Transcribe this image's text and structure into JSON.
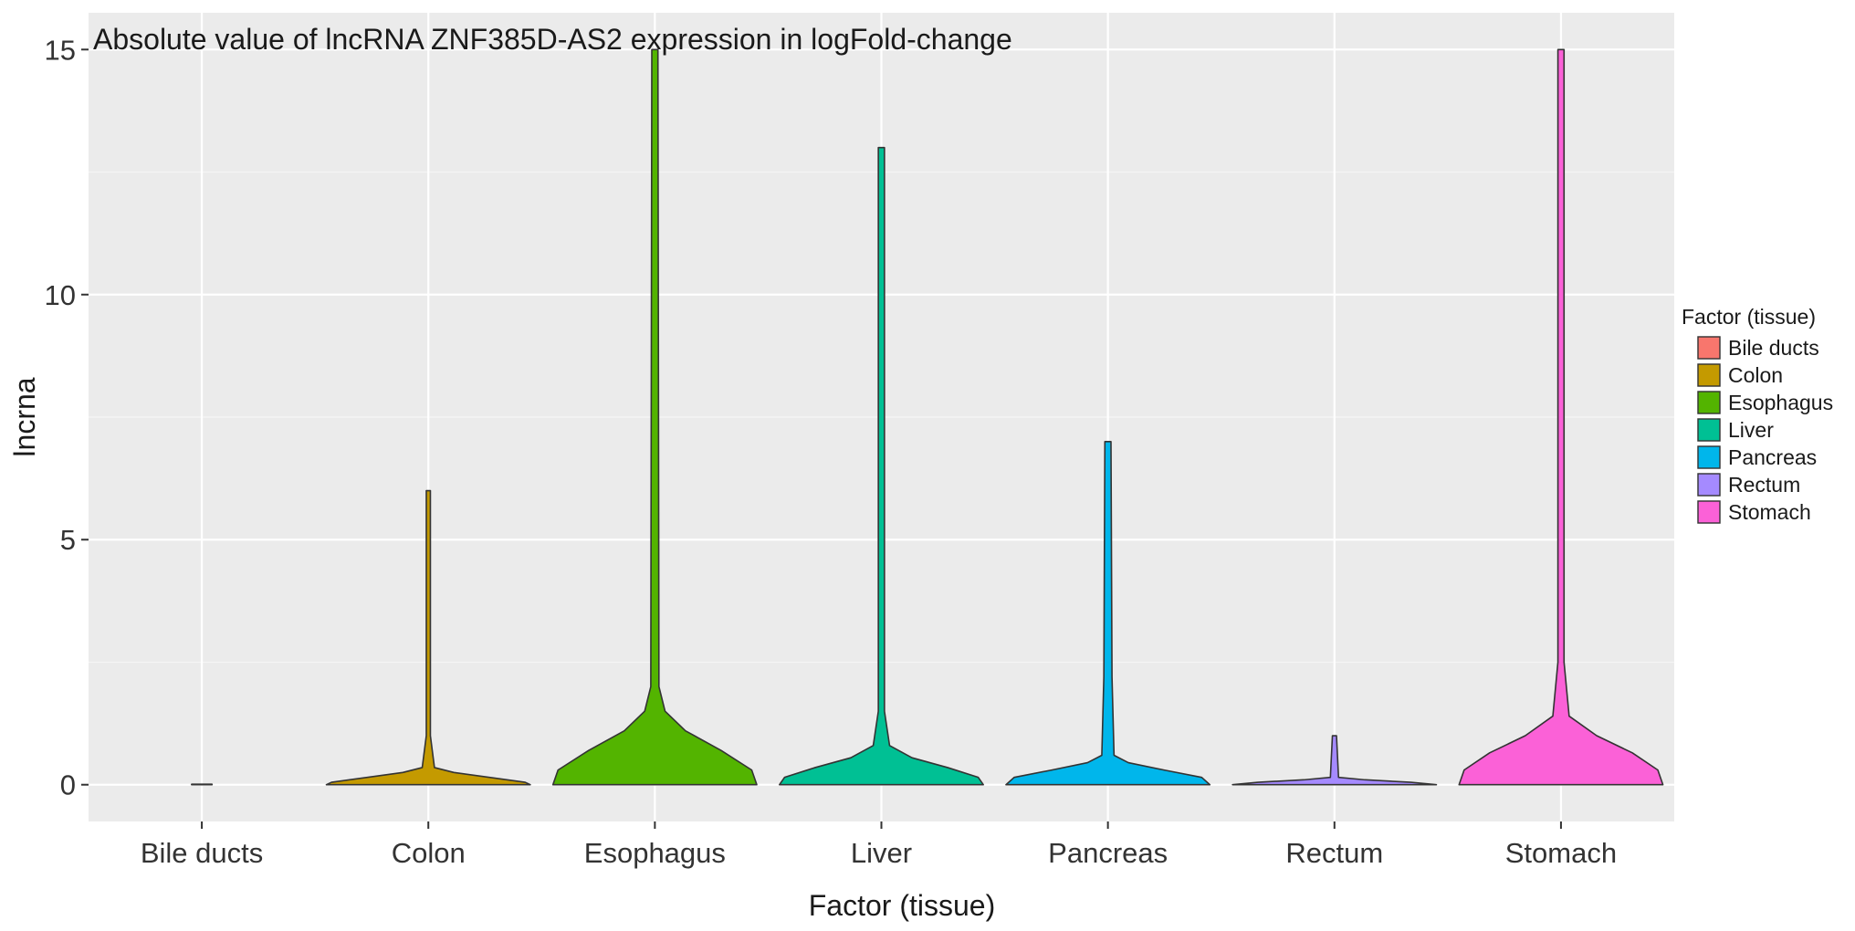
{
  "chart_data": {
    "type": "violin",
    "title": "Absolute value of lncRNA ZNF385D-AS2 expression in logFold-change",
    "xlabel": "Factor (tissue)",
    "ylabel": "lncrna",
    "ylim": [
      -0.75,
      15.75
    ],
    "yticks": [
      0,
      5,
      10,
      15
    ],
    "grid": true,
    "legend_position": "right",
    "legend_title": "Factor (tissue)",
    "categories": [
      "Bile ducts",
      "Colon",
      "Esophagus",
      "Liver",
      "Pancreas",
      "Rectum",
      "Stomach"
    ],
    "colors": [
      "#F8766D",
      "#C49A00",
      "#53B400",
      "#00C094",
      "#00B6EB",
      "#A58AFF",
      "#FB61D7"
    ],
    "series": [
      {
        "name": "Bile ducts",
        "min": 0,
        "max": 0,
        "density": [
          [
            0,
            0.1
          ],
          [
            0.01,
            0.1
          ]
        ]
      },
      {
        "name": "Colon",
        "min": 0,
        "max": 6,
        "density": [
          [
            0,
            1.0
          ],
          [
            0.05,
            0.95
          ],
          [
            0.15,
            0.6
          ],
          [
            0.25,
            0.25
          ],
          [
            0.35,
            0.06
          ],
          [
            1.0,
            0.02
          ],
          [
            6.0,
            0.02
          ]
        ]
      },
      {
        "name": "Esophagus",
        "min": 0,
        "max": 15,
        "density": [
          [
            0,
            1.0
          ],
          [
            0.3,
            0.95
          ],
          [
            0.7,
            0.65
          ],
          [
            1.1,
            0.3
          ],
          [
            1.5,
            0.1
          ],
          [
            2.0,
            0.04
          ],
          [
            15.0,
            0.03
          ]
        ]
      },
      {
        "name": "Liver",
        "min": 0,
        "max": 13,
        "density": [
          [
            0,
            1.0
          ],
          [
            0.15,
            0.95
          ],
          [
            0.35,
            0.65
          ],
          [
            0.55,
            0.3
          ],
          [
            0.8,
            0.08
          ],
          [
            1.5,
            0.03
          ],
          [
            13.0,
            0.03
          ]
        ]
      },
      {
        "name": "Pancreas",
        "min": 0,
        "max": 7,
        "density": [
          [
            0,
            1.0
          ],
          [
            0.15,
            0.92
          ],
          [
            0.3,
            0.55
          ],
          [
            0.45,
            0.2
          ],
          [
            0.6,
            0.06
          ],
          [
            2.2,
            0.04
          ],
          [
            7.0,
            0.03
          ]
        ]
      },
      {
        "name": "Rectum",
        "min": 0,
        "max": 1,
        "density": [
          [
            0,
            1.0
          ],
          [
            0.05,
            0.75
          ],
          [
            0.1,
            0.3
          ],
          [
            0.15,
            0.04
          ],
          [
            1.0,
            0.02
          ]
        ]
      },
      {
        "name": "Stomach",
        "min": 0,
        "max": 15,
        "density": [
          [
            0,
            1.0
          ],
          [
            0.3,
            0.95
          ],
          [
            0.65,
            0.7
          ],
          [
            1.0,
            0.35
          ],
          [
            1.4,
            0.08
          ],
          [
            2.5,
            0.03
          ],
          [
            15.0,
            0.03
          ]
        ]
      }
    ]
  }
}
